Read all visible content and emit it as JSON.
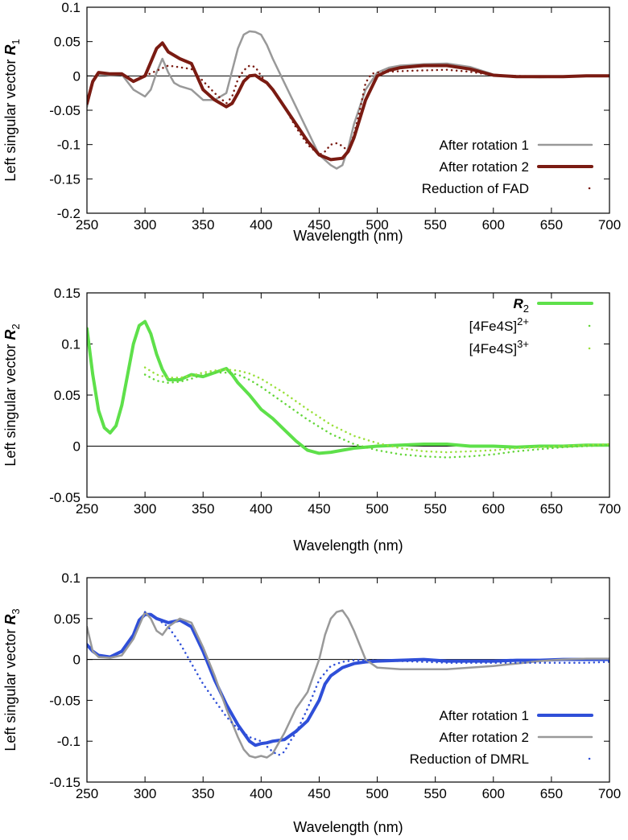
{
  "chart_data": [
    {
      "type": "line",
      "ylabel": "Left singular vector R",
      "ylabel_sub": "1",
      "xlabel": "Wavelength (nm)",
      "xlim": [
        250,
        700
      ],
      "ylim": [
        -0.2,
        0.1
      ],
      "xticks": [
        250,
        300,
        350,
        400,
        450,
        500,
        550,
        600,
        650,
        700
      ],
      "yticks": [
        -0.2,
        -0.15,
        -0.1,
        -0.05,
        0,
        0.05,
        0.1
      ],
      "ytick_labels": [
        "-0.2",
        "-0.15",
        "-0.1",
        "-0.05",
        "0",
        "0.05",
        "0.1"
      ],
      "legend_position": "bottom-right",
      "series": [
        {
          "name": "After rotation 1",
          "color": "#999999",
          "style": "solid",
          "width": 2.5,
          "x": [
            250,
            255,
            260,
            270,
            280,
            290,
            300,
            305,
            310,
            315,
            320,
            325,
            330,
            340,
            350,
            360,
            370,
            380,
            385,
            390,
            395,
            400,
            405,
            410,
            420,
            430,
            440,
            450,
            460,
            465,
            470,
            475,
            480,
            490,
            500,
            510,
            520,
            540,
            560,
            580,
            600,
            620,
            640,
            660,
            680,
            700
          ],
          "y": [
            -0.045,
            -0.01,
            0.003,
            0.001,
            0.002,
            -0.02,
            -0.03,
            -0.02,
            0.005,
            0.025,
            0.005,
            -0.01,
            -0.015,
            -0.02,
            -0.035,
            -0.035,
            -0.025,
            0.04,
            0.06,
            0.065,
            0.064,
            0.06,
            0.045,
            0.025,
            -0.01,
            -0.045,
            -0.08,
            -0.115,
            -0.13,
            -0.135,
            -0.13,
            -0.105,
            -0.07,
            -0.02,
            0.005,
            0.012,
            0.015,
            0.017,
            0.018,
            0.013,
            0.002,
            -0.001,
            -0.002,
            -0.001,
            0.0,
            0.0
          ]
        },
        {
          "name": "After rotation 2",
          "color": "#7a1b12",
          "style": "solid",
          "width": 4,
          "x": [
            250,
            255,
            260,
            270,
            280,
            290,
            300,
            305,
            310,
            315,
            320,
            330,
            340,
            350,
            360,
            370,
            375,
            380,
            385,
            390,
            395,
            400,
            405,
            410,
            420,
            430,
            440,
            450,
            460,
            470,
            475,
            480,
            490,
            500,
            510,
            520,
            540,
            560,
            580,
            600,
            620,
            640,
            660,
            680,
            700
          ],
          "y": [
            -0.04,
            -0.008,
            0.005,
            0.003,
            0.003,
            -0.008,
            0.0,
            0.02,
            0.04,
            0.048,
            0.035,
            0.025,
            0.018,
            -0.02,
            -0.035,
            -0.045,
            -0.04,
            -0.025,
            -0.008,
            0.0,
            0.001,
            -0.005,
            -0.01,
            -0.02,
            -0.045,
            -0.07,
            -0.095,
            -0.115,
            -0.122,
            -0.12,
            -0.11,
            -0.09,
            -0.035,
            0.0,
            0.008,
            0.012,
            0.015,
            0.015,
            0.01,
            0.001,
            -0.001,
            -0.001,
            -0.001,
            0.0,
            0.0
          ]
        },
        {
          "name": "Reduction of FAD",
          "color": "#7a1b12",
          "style": "dotted",
          "width": 2.5,
          "x": [
            300,
            320,
            340,
            360,
            370,
            375,
            380,
            385,
            390,
            395,
            400,
            405,
            410,
            420,
            430,
            440,
            450,
            455,
            460,
            465,
            470,
            475,
            480,
            485,
            490,
            495,
            500,
            520,
            540,
            560,
            580,
            600,
            620,
            640,
            660,
            680,
            700
          ],
          "y": [
            0.0,
            0.015,
            0.01,
            -0.025,
            -0.04,
            -0.03,
            -0.005,
            0.008,
            0.015,
            0.013,
            0.0,
            -0.01,
            -0.02,
            -0.045,
            -0.075,
            -0.1,
            -0.115,
            -0.11,
            -0.1,
            -0.098,
            -0.102,
            -0.11,
            -0.085,
            -0.05,
            -0.01,
            0.003,
            0.005,
            0.007,
            0.008,
            0.009,
            0.006,
            0.001,
            0.0,
            -0.001,
            -0.001,
            0.0,
            0.0
          ]
        }
      ]
    },
    {
      "type": "line",
      "ylabel": "Left singular vector R",
      "ylabel_sub": "2",
      "xlabel": "Wavelength (nm)",
      "xlim": [
        250,
        700
      ],
      "ylim": [
        -0.05,
        0.15
      ],
      "xticks": [
        250,
        300,
        350,
        400,
        450,
        500,
        550,
        600,
        650,
        700
      ],
      "yticks": [
        -0.05,
        0,
        0.05,
        0.1,
        0.15
      ],
      "ytick_labels": [
        "-0.05",
        "0",
        "0.05",
        "0.1",
        "0.15"
      ],
      "legend_position": "top-right",
      "series": [
        {
          "name": "R",
          "name_sub": "2",
          "color": "#5ee04a",
          "style": "solid",
          "width": 4,
          "x": [
            250,
            255,
            260,
            265,
            270,
            275,
            280,
            285,
            290,
            295,
            300,
            305,
            310,
            315,
            320,
            330,
            340,
            350,
            360,
            370,
            375,
            380,
            390,
            400,
            410,
            420,
            430,
            440,
            450,
            460,
            480,
            500,
            520,
            540,
            560,
            580,
            600,
            620,
            640,
            660,
            680,
            700
          ],
          "y": [
            0.115,
            0.07,
            0.035,
            0.018,
            0.013,
            0.02,
            0.04,
            0.07,
            0.1,
            0.118,
            0.122,
            0.11,
            0.09,
            0.075,
            0.065,
            0.065,
            0.07,
            0.068,
            0.072,
            0.076,
            0.07,
            0.062,
            0.05,
            0.036,
            0.027,
            0.016,
            0.005,
            -0.004,
            -0.007,
            -0.006,
            -0.002,
            0.0,
            0.001,
            0.002,
            0.002,
            0.0,
            0.0,
            -0.001,
            0.0,
            0.0,
            0.001,
            0.001
          ]
        },
        {
          "name": "[4Fe4S]",
          "name_sup": "2+",
          "color": "#63d63a",
          "style": "dotted",
          "width": 2.5,
          "x": [
            300,
            310,
            320,
            330,
            340,
            350,
            360,
            370,
            380,
            390,
            400,
            420,
            440,
            460,
            480,
            500,
            520,
            540,
            560,
            580,
            600,
            620,
            640,
            660,
            680,
            700
          ],
          "y": [
            0.07,
            0.064,
            0.062,
            0.063,
            0.066,
            0.07,
            0.072,
            0.072,
            0.07,
            0.065,
            0.058,
            0.042,
            0.026,
            0.012,
            0.002,
            -0.004,
            -0.008,
            -0.01,
            -0.011,
            -0.01,
            -0.008,
            -0.005,
            -0.003,
            -0.001,
            0.0,
            0.001
          ]
        },
        {
          "name": "[4Fe4S]",
          "name_sup": "3+",
          "color": "#9ae03a",
          "style": "dotted",
          "width": 2.5,
          "x": [
            300,
            310,
            320,
            330,
            340,
            350,
            360,
            370,
            380,
            390,
            400,
            420,
            440,
            460,
            480,
            500,
            520,
            540,
            560,
            580,
            600,
            620,
            640,
            660,
            680,
            700
          ],
          "y": [
            0.077,
            0.07,
            0.067,
            0.067,
            0.069,
            0.072,
            0.074,
            0.075,
            0.074,
            0.071,
            0.066,
            0.052,
            0.036,
            0.021,
            0.01,
            0.003,
            -0.002,
            -0.005,
            -0.006,
            -0.005,
            -0.004,
            -0.002,
            -0.001,
            0.0,
            0.001,
            0.002
          ]
        }
      ]
    },
    {
      "type": "line",
      "ylabel": "Left singular vector R",
      "ylabel_sub": "3",
      "xlabel": "Wavelength (nm)",
      "xlim": [
        250,
        700
      ],
      "ylim": [
        -0.15,
        0.1
      ],
      "xticks": [
        250,
        300,
        350,
        400,
        450,
        500,
        550,
        600,
        650,
        700
      ],
      "yticks": [
        -0.15,
        -0.1,
        -0.05,
        0,
        0.05,
        0.1
      ],
      "ytick_labels": [
        "-0.15",
        "-0.1",
        "-0.05",
        "0",
        "0.05",
        "0.1"
      ],
      "legend_position": "bottom-right",
      "series": [
        {
          "name": "After rotation 1",
          "color": "#2f4fd8",
          "style": "solid",
          "width": 4,
          "x": [
            250,
            255,
            260,
            270,
            280,
            290,
            295,
            300,
            305,
            310,
            320,
            330,
            340,
            350,
            360,
            370,
            380,
            390,
            395,
            400,
            405,
            410,
            420,
            430,
            440,
            450,
            455,
            460,
            470,
            480,
            490,
            500,
            520,
            540,
            560,
            580,
            600,
            620,
            640,
            660,
            680,
            700
          ],
          "y": [
            0.018,
            0.01,
            0.005,
            0.003,
            0.01,
            0.03,
            0.048,
            0.055,
            0.055,
            0.05,
            0.045,
            0.048,
            0.04,
            0.01,
            -0.025,
            -0.055,
            -0.08,
            -0.1,
            -0.105,
            -0.103,
            -0.102,
            -0.1,
            -0.098,
            -0.088,
            -0.075,
            -0.05,
            -0.03,
            -0.02,
            -0.01,
            -0.005,
            -0.003,
            -0.002,
            -0.001,
            0.0,
            -0.002,
            -0.002,
            -0.002,
            -0.001,
            -0.001,
            0.0,
            0.0,
            0.0
          ]
        },
        {
          "name": "After rotation 2",
          "color": "#999999",
          "style": "solid",
          "width": 2.5,
          "x": [
            250,
            255,
            260,
            270,
            280,
            290,
            300,
            305,
            310,
            315,
            320,
            330,
            340,
            350,
            360,
            370,
            380,
            385,
            390,
            395,
            400,
            405,
            410,
            420,
            430,
            440,
            450,
            455,
            460,
            465,
            470,
            475,
            480,
            490,
            500,
            520,
            540,
            560,
            580,
            600,
            620,
            640,
            660,
            680,
            700
          ],
          "y": [
            0.04,
            0.01,
            0.003,
            0.002,
            0.005,
            0.025,
            0.058,
            0.05,
            0.035,
            0.03,
            0.04,
            0.05,
            0.045,
            0.015,
            -0.02,
            -0.06,
            -0.095,
            -0.11,
            -0.118,
            -0.12,
            -0.118,
            -0.12,
            -0.115,
            -0.09,
            -0.06,
            -0.04,
            0.0,
            0.03,
            0.05,
            0.058,
            0.06,
            0.05,
            0.035,
            0.0,
            -0.01,
            -0.012,
            -0.012,
            -0.012,
            -0.01,
            -0.008,
            -0.005,
            -0.002,
            0.0,
            0.001,
            0.001
          ]
        },
        {
          "name": "Reduction of DMRL",
          "color": "#2f4fd8",
          "style": "dotted",
          "width": 2.5,
          "x": [
            300,
            305,
            310,
            320,
            330,
            340,
            350,
            360,
            370,
            380,
            390,
            400,
            410,
            415,
            420,
            425,
            430,
            440,
            450,
            460,
            470,
            480,
            500,
            520,
            540,
            560,
            580,
            600,
            620,
            640,
            660,
            680,
            700
          ],
          "y": [
            0.058,
            0.055,
            0.05,
            0.04,
            0.02,
            -0.005,
            -0.03,
            -0.05,
            -0.07,
            -0.085,
            -0.095,
            -0.1,
            -0.113,
            -0.117,
            -0.113,
            -0.1,
            -0.09,
            -0.06,
            -0.025,
            -0.008,
            -0.003,
            -0.001,
            -0.001,
            -0.002,
            -0.003,
            -0.004,
            -0.004,
            -0.004,
            -0.004,
            -0.004,
            -0.004,
            -0.004,
            -0.003
          ]
        }
      ]
    }
  ]
}
